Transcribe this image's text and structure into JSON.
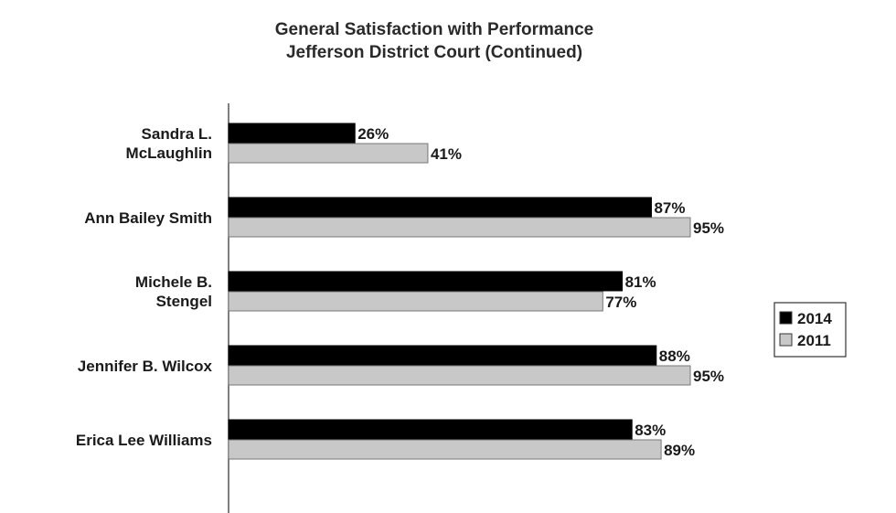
{
  "chart_data": {
    "type": "bar",
    "orientation": "horizontal",
    "title": "General Satisfaction with Performance",
    "subtitle": "Jefferson District Court (Continued)",
    "categories": [
      [
        "Sandra L.",
        "McLaughlin"
      ],
      [
        "Ann Bailey Smith"
      ],
      [
        "Michele B.",
        "Stengel"
      ],
      [
        "Jennifer B. Wilcox"
      ],
      [
        "Erica Lee Williams"
      ]
    ],
    "series": [
      {
        "name": "2014",
        "values": [
          26,
          87,
          81,
          88,
          83
        ],
        "color": "#000000"
      },
      {
        "name": "2011",
        "values": [
          41,
          95,
          77,
          95,
          89
        ],
        "color": "#c8c8c8"
      }
    ],
    "value_suffix": "%",
    "xlim": [
      0,
      100
    ],
    "legend": "right",
    "grid": false
  }
}
